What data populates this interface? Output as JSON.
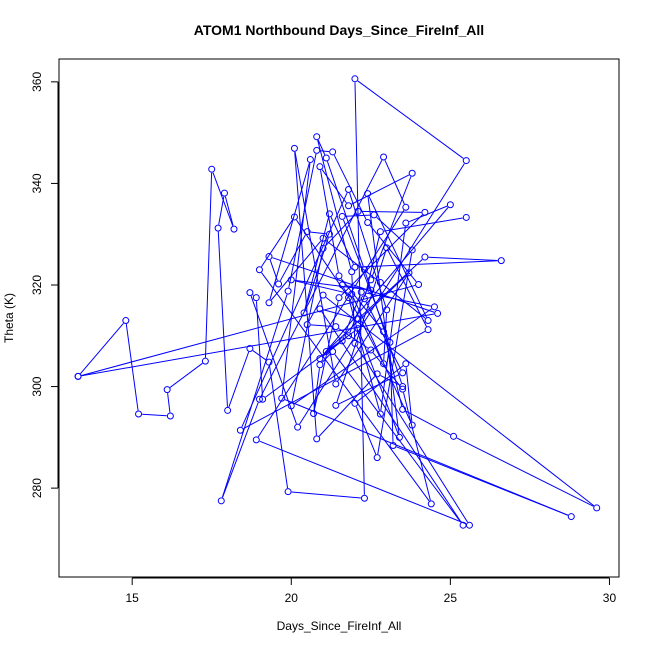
{
  "chart_data": {
    "type": "line",
    "title": "ATOM1 Northbound Days_Since_FireInf_All",
    "xlabel": "Days_Since_FireInf_All",
    "ylabel": "Theta (K)",
    "xlim": [
      12.7,
      30.3
    ],
    "ylim": [
      262.5,
      364.5
    ],
    "xticks": [
      15,
      20,
      25,
      30
    ],
    "yticks": [
      280,
      300,
      320,
      340,
      360
    ],
    "series_color": "#0000ff",
    "markers": "open-circle",
    "series": [
      {
        "points": [
          [
            13.3,
            302
          ],
          [
            14.8,
            313
          ],
          [
            15.2,
            294.6
          ],
          [
            16.2,
            294.2
          ],
          [
            16.1,
            299.4
          ],
          [
            17.3,
            305
          ],
          [
            17.5,
            342.8
          ],
          [
            18.2,
            331
          ],
          [
            17.9,
            338.1
          ],
          [
            17.7,
            331.2
          ],
          [
            18.0,
            295.3
          ],
          [
            18.7,
            307.5
          ],
          [
            19.3,
            304.8
          ],
          [
            19.9,
            279.3
          ],
          [
            22.3,
            278
          ],
          [
            22.0,
            360.6
          ],
          [
            25.5,
            344.5
          ],
          [
            20.2,
            292
          ],
          [
            18.7,
            318.5
          ],
          [
            18.9,
            317.5
          ],
          [
            19.1,
            297.5
          ],
          [
            21.8,
            310
          ],
          [
            22.5,
            321
          ],
          [
            23.8,
            342
          ],
          [
            21.8,
            335.6
          ],
          [
            20.9,
            343.3
          ],
          [
            21.5,
            321.8
          ],
          [
            22.9,
            310.8
          ],
          [
            23.5,
            295.5
          ],
          [
            25.1,
            290.2
          ],
          [
            29.6,
            276.1
          ],
          [
            21.0,
            318
          ],
          [
            20.5,
            312.2
          ],
          [
            21.4,
            311.8
          ],
          [
            22.5,
            307.2
          ],
          [
            23.5,
            299.5
          ],
          [
            24.4,
            276.9
          ],
          [
            19.0,
            323
          ],
          [
            20.1,
            333.4
          ],
          [
            21.8,
            317.5
          ],
          [
            22.8,
            294.6
          ],
          [
            23.6,
            332.2
          ],
          [
            25.0,
            335.8
          ],
          [
            20.9,
            305.5
          ],
          [
            21.6,
            309
          ],
          [
            22.2,
            318.6
          ],
          [
            24.5,
            315.7
          ],
          [
            20.0,
            296.2
          ],
          [
            21.0,
            327.2
          ],
          [
            22.1,
            334.5
          ],
          [
            24.2,
            334.3
          ],
          [
            21.5,
            317.5
          ],
          [
            20.7,
            294.7
          ],
          [
            20.9,
            304.3
          ],
          [
            21.3,
            306.9
          ],
          [
            25.4,
            272.7
          ],
          [
            20.9,
            315.3
          ],
          [
            22.1,
            313.3
          ],
          [
            24.2,
            325.5
          ],
          [
            26.6,
            324.8
          ],
          [
            22.0,
            323.5
          ],
          [
            21.2,
            334
          ],
          [
            20.4,
            314.5
          ],
          [
            21.2,
            330
          ],
          [
            20.5,
            330.5
          ],
          [
            19.6,
            320.2
          ],
          [
            19.3,
            325.6
          ],
          [
            24.6,
            314.4
          ],
          [
            13.3,
            302
          ],
          [
            24.0,
            320.1
          ],
          [
            22.4,
            332.3
          ],
          [
            21.3,
            346.2
          ],
          [
            20.8,
            346.5
          ],
          [
            19.9,
            318.8
          ],
          [
            17.8,
            277.5
          ],
          [
            19.0,
            297.5
          ],
          [
            22.9,
            345.2
          ],
          [
            23.6,
            335.3
          ],
          [
            18.9,
            289.5
          ],
          [
            25.6,
            272.7
          ],
          [
            22.0,
            308.5
          ],
          [
            21.9,
            322.6
          ],
          [
            20.8,
            349.2
          ],
          [
            21.1,
            345
          ],
          [
            22.3,
            323
          ],
          [
            23.5,
            300
          ],
          [
            22.7,
            302.5
          ],
          [
            20.8,
            289.7
          ],
          [
            20.1,
            346.9
          ],
          [
            21.4,
            300.5
          ],
          [
            23.7,
            322.4
          ],
          [
            21.1,
            306.9
          ],
          [
            22.1,
            311.4
          ],
          [
            23.4,
            290
          ],
          [
            22.4,
            338
          ],
          [
            24.3,
            313
          ],
          [
            22.8,
            320.5
          ],
          [
            21.0,
            329.2
          ],
          [
            19.3,
            316.5
          ],
          [
            20.6,
            344.7
          ],
          [
            19.7,
            297.7
          ],
          [
            28.8,
            274.4
          ],
          [
            23.2,
            288.4
          ],
          [
            23.1,
            308.7
          ],
          [
            21.6,
            333.5
          ],
          [
            22.6,
            333.8
          ],
          [
            23.8,
            326.9
          ],
          [
            22.7,
            286
          ],
          [
            22.0,
            296.7
          ],
          [
            23.6,
            304.5
          ],
          [
            23.8,
            292.4
          ],
          [
            21.9,
            318.2
          ],
          [
            20.0,
            321
          ],
          [
            22.5,
            319
          ],
          [
            21.6,
            320
          ],
          [
            22.9,
            304.5
          ],
          [
            23.0,
            315.1
          ],
          [
            21.8,
            338.8
          ],
          [
            18.4,
            291.4
          ],
          [
            24.3,
            311.2
          ],
          [
            23.0,
            327.3
          ],
          [
            21.4,
            296.3
          ],
          [
            23.5,
            302.7
          ],
          [
            22.3,
            317.3
          ],
          [
            22.8,
            330.5
          ],
          [
            25.5,
            333.3
          ]
        ]
      }
    ]
  }
}
